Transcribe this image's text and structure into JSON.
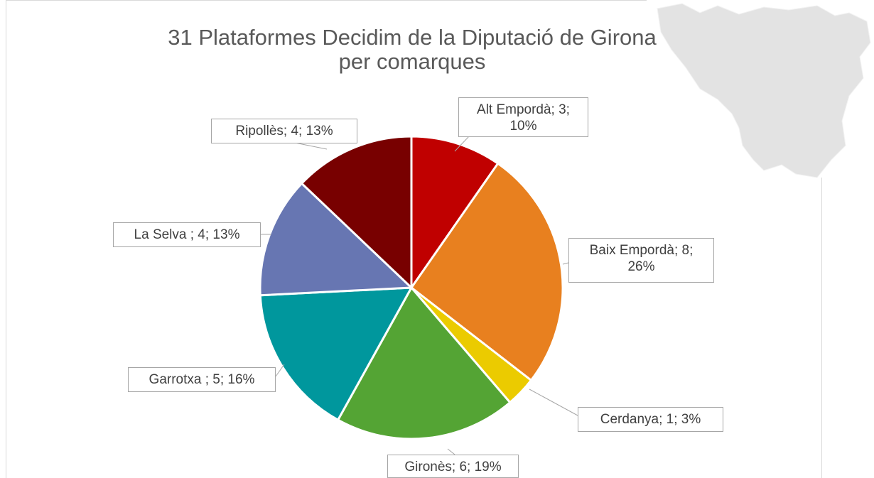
{
  "chart_data": {
    "type": "pie",
    "title": "31 Plataformes Decidim de la Diputació de Girona per comarques",
    "categories": [
      "Alt Empordà",
      "Baix Empordà",
      "Cerdanya",
      "Gironès",
      "Garrotxa ",
      "La Selva ",
      "Ripollès"
    ],
    "values": [
      3,
      8,
      1,
      6,
      5,
      4,
      4
    ],
    "value_labels": [
      "Alt Empordà; 3; 10%",
      "Baix Empordà; 8; 26%",
      "Cerdanya; 1; 3%",
      "Gironès; 6; 19%",
      "Garrotxa ; 5; 16%",
      "La Selva ; 4; 13%",
      "Ripollès; 4; 13%"
    ],
    "colors": [
      "#c00000",
      "#e8801f",
      "#ebcb00",
      "#54a434",
      "#00979d",
      "#6776b2",
      "#780000"
    ]
  }
}
